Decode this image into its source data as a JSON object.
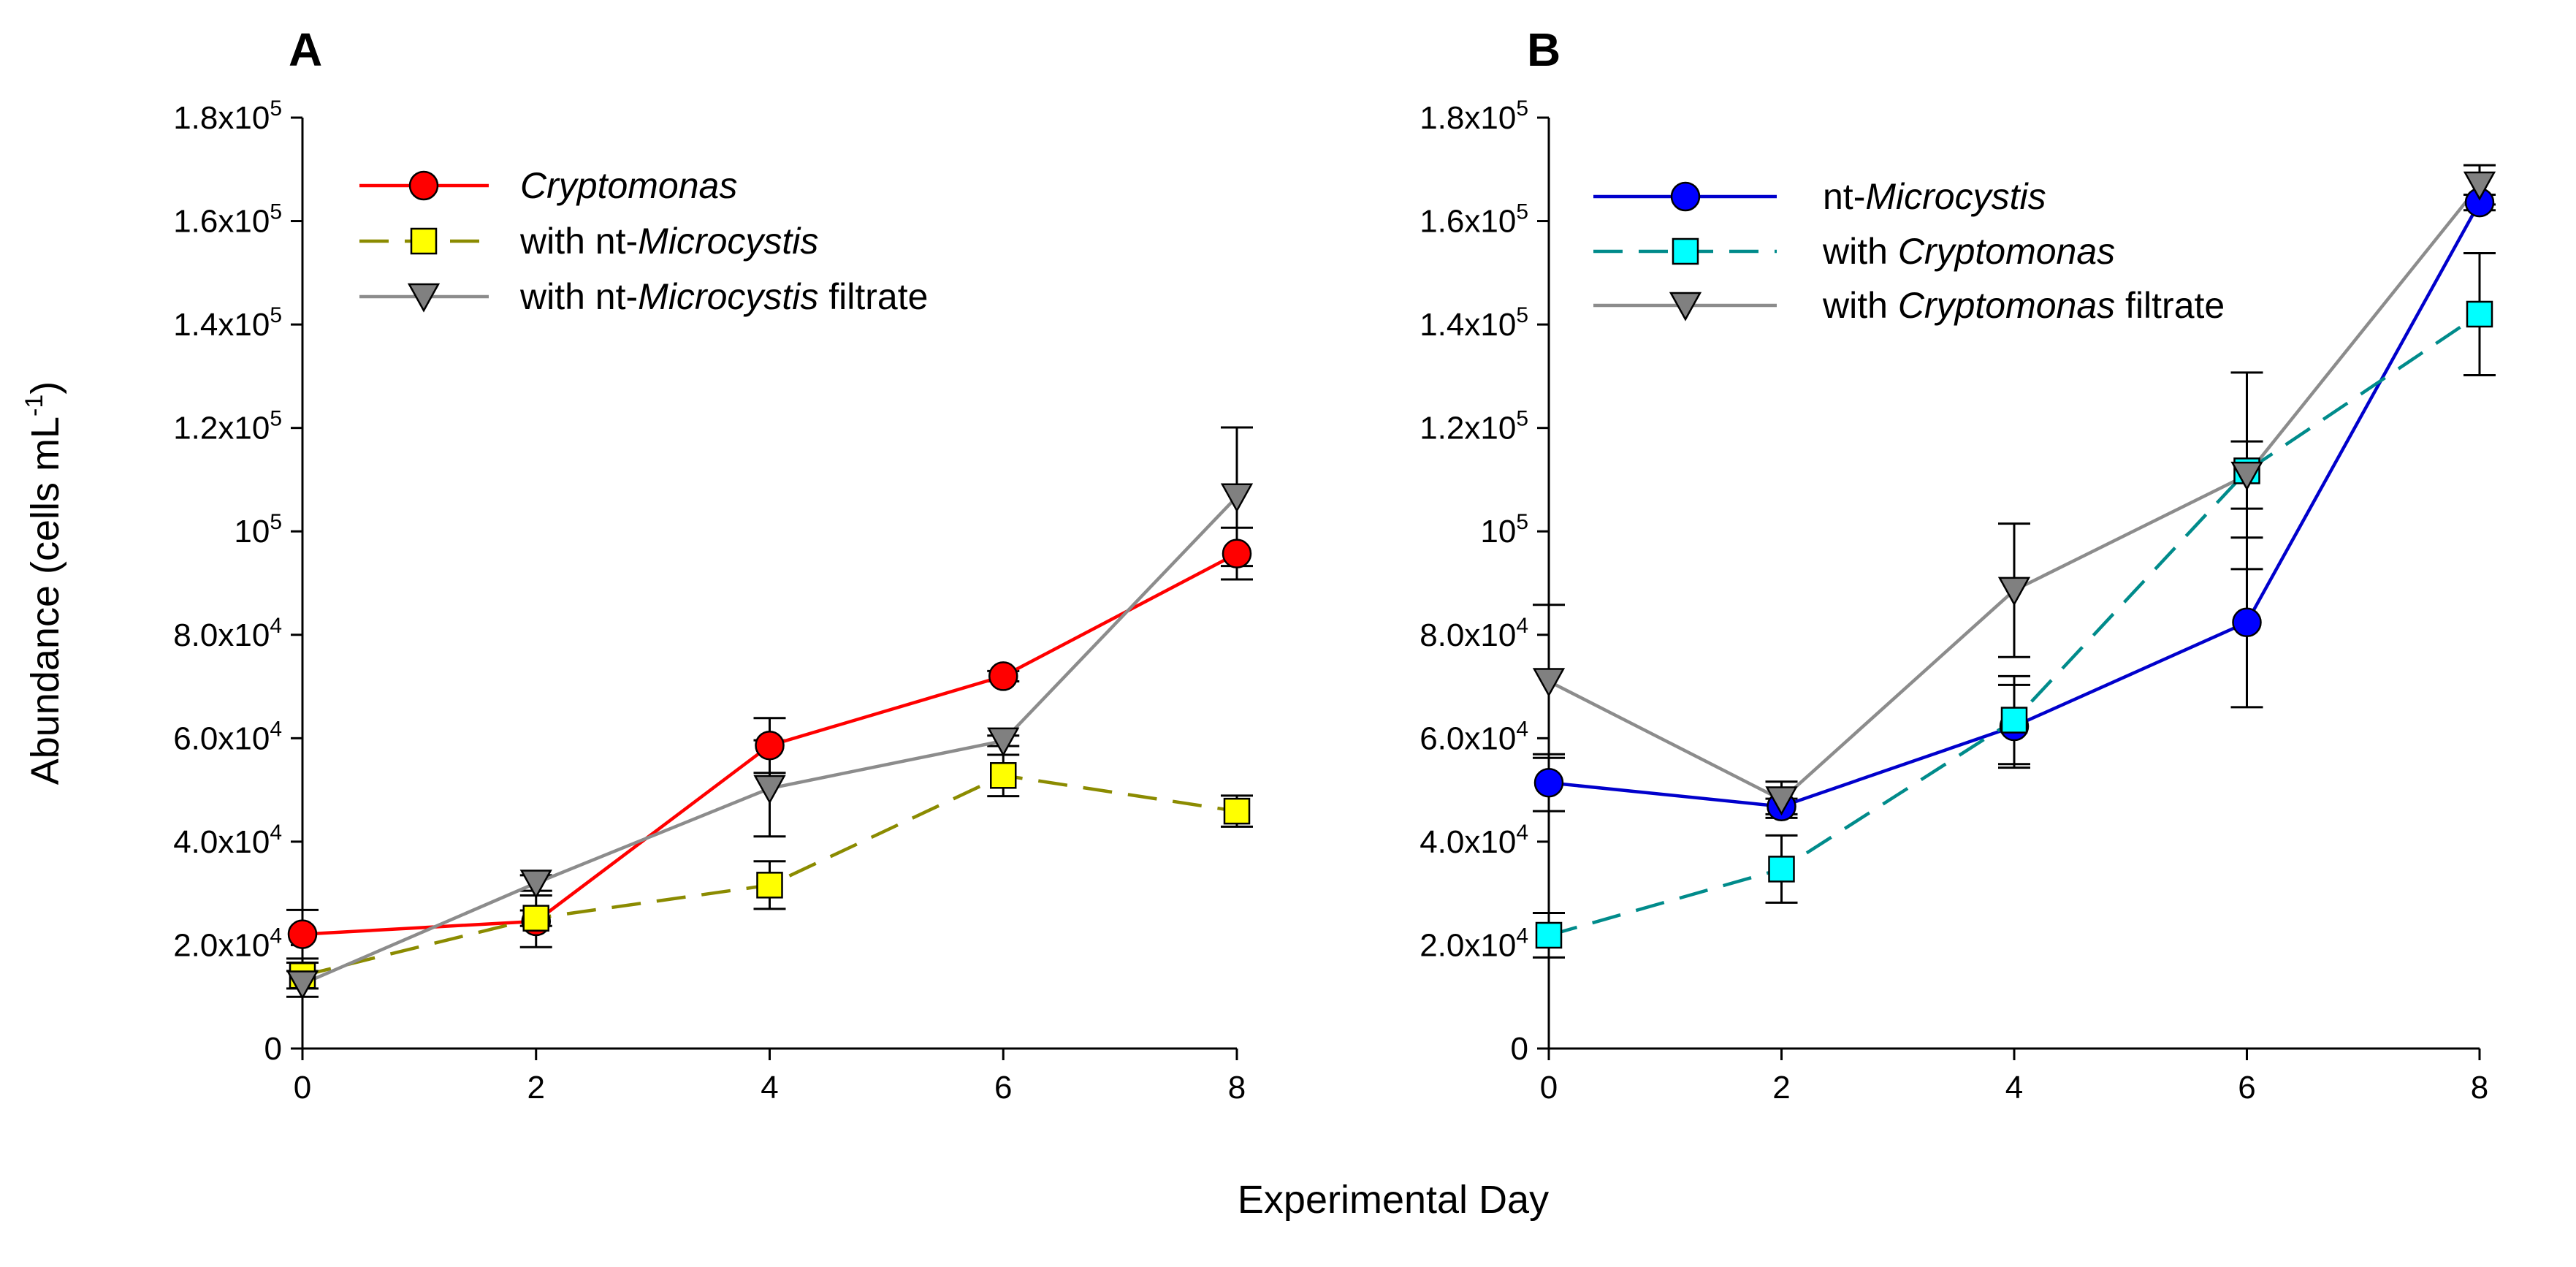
{
  "x_label": "Experimental Day",
  "y_label": {
    "base": "Abundance (cells mL",
    "exp": "-1",
    "tail": ")"
  },
  "chart_data": [
    {
      "type": "line",
      "panel": "A",
      "x": [
        0,
        2,
        4,
        6,
        8
      ],
      "xlim": [
        0,
        8
      ],
      "ylim": [
        0,
        180000
      ],
      "x_ticks": [
        "0",
        "2",
        "4",
        "6",
        "8"
      ],
      "y_ticks": [
        {
          "value": 0,
          "base": "0",
          "exp": ""
        },
        {
          "value": 20000,
          "base": "2.0x10",
          "exp": "4"
        },
        {
          "value": 40000,
          "base": "4.0x10",
          "exp": "4"
        },
        {
          "value": 60000,
          "base": "6.0x10",
          "exp": "4"
        },
        {
          "value": 80000,
          "base": "8.0x10",
          "exp": "4"
        },
        {
          "value": 100000,
          "base": "10",
          "exp": "5"
        },
        {
          "value": 120000,
          "base": "1.2x10",
          "exp": "5"
        },
        {
          "value": 140000,
          "base": "1.4x10",
          "exp": "5"
        },
        {
          "value": 160000,
          "base": "1.6x10",
          "exp": "5"
        },
        {
          "value": 180000,
          "base": "1.8x10",
          "exp": "5"
        }
      ],
      "legend_position": "top-left",
      "series": [
        {
          "name": [
            {
              "t": "Cryptomonas",
              "i": true
            }
          ],
          "color": "#ff0000",
          "fill": "#ff0000",
          "marker": "circle",
          "dash": false,
          "values": [
            22100,
            24600,
            58600,
            72000,
            95700
          ],
          "errors": [
            4700,
            5000,
            5300,
            1000,
            5000
          ]
        },
        {
          "name": [
            {
              "t": "with nt-",
              "i": false
            },
            {
              "t": "Microcystis",
              "i": true
            }
          ],
          "color": "#8b8b00",
          "fill": "#ffff00",
          "marker": "square",
          "dash": true,
          "values": [
            14100,
            25200,
            31600,
            52800,
            45900
          ],
          "errors": [
            2500,
            1500,
            4600,
            4000,
            3000
          ]
        },
        {
          "name": [
            {
              "t": "with nt-",
              "i": false
            },
            {
              "t": "Microcystis",
              "i": true
            },
            {
              "t": " filtrate",
              "i": false
            }
          ],
          "color": "#8c8c8c",
          "fill": "#808080",
          "marker": "triangle-down",
          "dash": false,
          "values": [
            12500,
            32000,
            50300,
            59500,
            106700
          ],
          "errors": [
            2500,
            1500,
            9300,
            1000,
            13400
          ]
        }
      ]
    },
    {
      "type": "line",
      "panel": "B",
      "x": [
        0,
        2,
        4,
        6,
        8
      ],
      "xlim": [
        0,
        8
      ],
      "ylim": [
        0,
        180000
      ],
      "x_ticks": [
        "0",
        "2",
        "4",
        "6",
        "8"
      ],
      "y_ticks": [
        {
          "value": 0,
          "base": "0",
          "exp": ""
        },
        {
          "value": 20000,
          "base": "2.0x10",
          "exp": "4"
        },
        {
          "value": 40000,
          "base": "4.0x10",
          "exp": "4"
        },
        {
          "value": 60000,
          "base": "6.0x10",
          "exp": "4"
        },
        {
          "value": 80000,
          "base": "8.0x10",
          "exp": "4"
        },
        {
          "value": 100000,
          "base": "10",
          "exp": "5"
        },
        {
          "value": 120000,
          "base": "1.2x10",
          "exp": "5"
        },
        {
          "value": 140000,
          "base": "1.4x10",
          "exp": "5"
        },
        {
          "value": 160000,
          "base": "1.6x10",
          "exp": "5"
        },
        {
          "value": 180000,
          "base": "1.8x10",
          "exp": "5"
        }
      ],
      "legend_position": "top-left",
      "series": [
        {
          "name": [
            {
              "t": "nt-",
              "i": false
            },
            {
              "t": "Microcystis",
              "i": true
            }
          ],
          "color": "#0000cc",
          "fill": "#0000ff",
          "marker": "circle",
          "dash": false,
          "values": [
            51400,
            46800,
            62300,
            82400,
            163600
          ],
          "errors": [
            5500,
            1500,
            8000,
            16400,
            1500
          ]
        },
        {
          "name": [
            {
              "t": "with ",
              "i": false
            },
            {
              "t": "Cryptomonas",
              "i": true
            }
          ],
          "color": "#008b8b",
          "fill": "#00ffff",
          "marker": "square",
          "dash": true,
          "values": [
            21900,
            34700,
            63500,
            111700,
            142000
          ],
          "errors": [
            4300,
            6500,
            8500,
            19000,
            11800
          ]
        },
        {
          "name": [
            {
              "t": "with ",
              "i": false
            },
            {
              "t": "Cryptomonas",
              "i": true
            },
            {
              "t": " filtrate",
              "i": false
            }
          ],
          "color": "#8c8c8c",
          "fill": "#808080",
          "marker": "triangle-down",
          "dash": false,
          "values": [
            71000,
            48100,
            88600,
            110900,
            167000
          ],
          "errors": [
            14800,
            3500,
            12900,
            6500,
            3800
          ]
        }
      ]
    }
  ]
}
